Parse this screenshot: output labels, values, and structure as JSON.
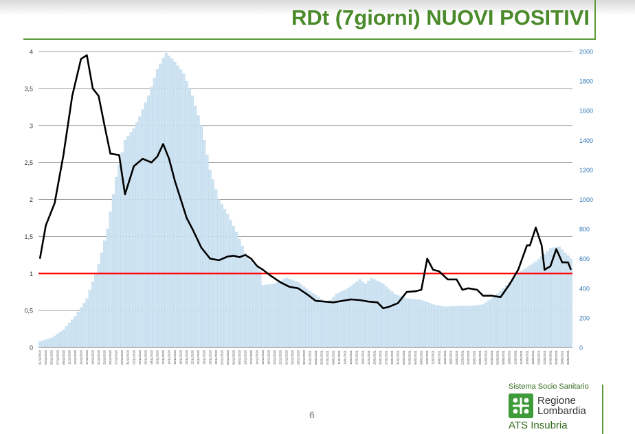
{
  "slide": {
    "title": "RDt (7giorni) NUOVI POSITIVI",
    "page_number": "6"
  },
  "logo": {
    "system": "Sistema Socio Sanitario",
    "region_line1": "Regione",
    "region_line2": "Lombardia",
    "agency": "ATS Insubria"
  },
  "colors": {
    "title": "#4a8a2a",
    "bars": "#cfe4f2",
    "bar_edge": "#a9cbe3",
    "rt_line": "#000000",
    "threshold": "#ff0000",
    "grid": "#808080",
    "right_axis_text": "#2e75b6"
  },
  "chart_data": {
    "type": "bar+line",
    "title": "",
    "xlabel": "",
    "ylabel_left": "",
    "ylabel_right": "",
    "left_axis": {
      "ylim": [
        0,
        4
      ],
      "ticks": [
        "0",
        "0,5",
        "1",
        "1,5",
        "2",
        "2,5",
        "3",
        "3,5",
        "4"
      ]
    },
    "right_axis": {
      "ylim": [
        0,
        2000
      ],
      "ticks": [
        "0",
        "200",
        "400",
        "600",
        "800",
        "1000",
        "1200",
        "1400",
        "1600",
        "1800",
        "2000"
      ]
    },
    "grid": true,
    "threshold_value": 1,
    "x_range": [
      "2020-10-01",
      "2021-03-31"
    ],
    "x_tick_step_days": 2,
    "bars_note": "daily new positives, right axis",
    "bars_anchors": [
      [
        "2020-10-01",
        40
      ],
      [
        "2020-10-05",
        65
      ],
      [
        "2020-10-09",
        120
      ],
      [
        "2020-10-13",
        210
      ],
      [
        "2020-10-17",
        330
      ],
      [
        "2020-10-21",
        560
      ],
      [
        "2020-10-24",
        800
      ],
      [
        "2020-10-27",
        1150
      ],
      [
        "2020-10-30",
        1400
      ],
      [
        "2020-11-02",
        1480
      ],
      [
        "2020-11-04",
        1560
      ],
      [
        "2020-11-07",
        1700
      ],
      [
        "2020-11-10",
        1880
      ],
      [
        "2020-11-13",
        1990
      ],
      [
        "2020-11-16",
        1930
      ],
      [
        "2020-11-19",
        1850
      ],
      [
        "2020-11-22",
        1700
      ],
      [
        "2020-11-25",
        1500
      ],
      [
        "2020-11-28",
        1200
      ],
      [
        "2020-12-01",
        1000
      ],
      [
        "2020-12-04",
        900
      ],
      [
        "2020-12-07",
        780
      ],
      [
        "2020-12-10",
        640
      ],
      [
        "2020-12-13",
        560
      ],
      [
        "2020-12-15",
        520
      ],
      [
        "2020-12-16",
        420
      ],
      [
        "2020-12-20",
        430
      ],
      [
        "2020-12-24",
        470
      ],
      [
        "2020-12-28",
        440
      ],
      [
        "2021-01-01",
        380
      ],
      [
        "2021-01-04",
        340
      ],
      [
        "2021-01-07",
        300
      ],
      [
        "2021-01-10",
        360
      ],
      [
        "2021-01-14",
        400
      ],
      [
        "2021-01-18",
        460
      ],
      [
        "2021-01-20",
        430
      ],
      [
        "2021-01-22",
        470
      ],
      [
        "2021-01-26",
        430
      ],
      [
        "2021-01-30",
        360
      ],
      [
        "2021-02-03",
        330
      ],
      [
        "2021-02-08",
        320
      ],
      [
        "2021-02-12",
        290
      ],
      [
        "2021-02-16",
        275
      ],
      [
        "2021-02-20",
        280
      ],
      [
        "2021-02-25",
        280
      ],
      [
        "2021-03-01",
        290
      ],
      [
        "2021-03-04",
        330
      ],
      [
        "2021-03-07",
        380
      ],
      [
        "2021-03-10",
        440
      ],
      [
        "2021-03-13",
        500
      ],
      [
        "2021-03-16",
        540
      ],
      [
        "2021-03-19",
        580
      ],
      [
        "2021-03-22",
        630
      ],
      [
        "2021-03-24",
        670
      ],
      [
        "2021-03-27",
        680
      ],
      [
        "2021-03-29",
        640
      ],
      [
        "2021-03-31",
        600
      ]
    ],
    "rt_note": "Rt 7-day, left axis",
    "rt_points": [
      [
        "2020-10-01",
        1.2
      ],
      [
        "2020-10-03",
        1.65
      ],
      [
        "2020-10-06",
        1.95
      ],
      [
        "2020-10-09",
        2.6
      ],
      [
        "2020-10-12",
        3.4
      ],
      [
        "2020-10-15",
        3.9
      ],
      [
        "2020-10-17",
        3.95
      ],
      [
        "2020-10-19",
        3.5
      ],
      [
        "2020-10-21",
        3.4
      ],
      [
        "2020-10-23",
        3.0
      ],
      [
        "2020-10-25",
        2.62
      ],
      [
        "2020-10-28",
        2.6
      ],
      [
        "2020-10-30",
        2.07
      ],
      [
        "2020-11-02",
        2.45
      ],
      [
        "2020-11-05",
        2.55
      ],
      [
        "2020-11-08",
        2.5
      ],
      [
        "2020-11-10",
        2.58
      ],
      [
        "2020-11-12",
        2.75
      ],
      [
        "2020-11-14",
        2.55
      ],
      [
        "2020-11-16",
        2.25
      ],
      [
        "2020-11-18",
        2.0
      ],
      [
        "2020-11-20",
        1.75
      ],
      [
        "2020-11-22",
        1.6
      ],
      [
        "2020-11-25",
        1.35
      ],
      [
        "2020-11-28",
        1.2
      ],
      [
        "2020-12-01",
        1.18
      ],
      [
        "2020-12-04",
        1.23
      ],
      [
        "2020-12-06",
        1.24
      ],
      [
        "2020-12-08",
        1.22
      ],
      [
        "2020-12-10",
        1.25
      ],
      [
        "2020-12-12",
        1.2
      ],
      [
        "2020-12-14",
        1.1
      ],
      [
        "2020-12-16",
        1.05
      ],
      [
        "2020-12-19",
        0.96
      ],
      [
        "2020-12-22",
        0.88
      ],
      [
        "2020-12-25",
        0.82
      ],
      [
        "2020-12-28",
        0.8
      ],
      [
        "2020-12-31",
        0.72
      ],
      [
        "2021-01-03",
        0.63
      ],
      [
        "2021-01-06",
        0.62
      ],
      [
        "2021-01-09",
        0.61
      ],
      [
        "2021-01-12",
        0.63
      ],
      [
        "2021-01-15",
        0.65
      ],
      [
        "2021-01-18",
        0.64
      ],
      [
        "2021-01-21",
        0.62
      ],
      [
        "2021-01-24",
        0.61
      ],
      [
        "2021-01-26",
        0.53
      ],
      [
        "2021-01-28",
        0.55
      ],
      [
        "2021-01-31",
        0.6
      ],
      [
        "2021-02-03",
        0.75
      ],
      [
        "2021-02-06",
        0.76
      ],
      [
        "2021-02-08",
        0.78
      ],
      [
        "2021-02-10",
        1.2
      ],
      [
        "2021-02-12",
        1.05
      ],
      [
        "2021-02-14",
        1.03
      ],
      [
        "2021-02-17",
        0.92
      ],
      [
        "2021-02-20",
        0.92
      ],
      [
        "2021-02-22",
        0.78
      ],
      [
        "2021-02-24",
        0.8
      ],
      [
        "2021-02-27",
        0.78
      ],
      [
        "2021-03-01",
        0.7
      ],
      [
        "2021-03-04",
        0.7
      ],
      [
        "2021-03-07",
        0.68
      ],
      [
        "2021-03-10",
        0.85
      ],
      [
        "2021-03-13",
        1.05
      ],
      [
        "2021-03-16",
        1.38
      ],
      [
        "2021-03-17",
        1.38
      ],
      [
        "2021-03-19",
        1.62
      ],
      [
        "2021-03-21",
        1.38
      ],
      [
        "2021-03-22",
        1.05
      ],
      [
        "2021-03-24",
        1.1
      ],
      [
        "2021-03-26",
        1.33
      ],
      [
        "2021-03-28",
        1.15
      ],
      [
        "2021-03-30",
        1.15
      ],
      [
        "2021-03-31",
        1.05
      ]
    ]
  }
}
